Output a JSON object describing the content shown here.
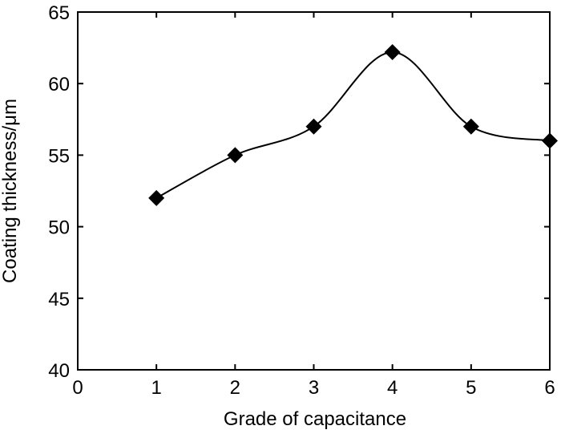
{
  "chart_data": {
    "type": "line",
    "title": "",
    "xlabel": "Grade of capacitance",
    "ylabel": "Coating thickness/μm",
    "x": [
      1,
      2,
      3,
      4,
      5,
      6
    ],
    "series": [
      {
        "values": [
          52,
          55,
          57,
          62.2,
          57,
          56
        ],
        "marker": "diamond",
        "color": "#000000",
        "smooth": true
      }
    ],
    "xlim": [
      0,
      6
    ],
    "ylim": [
      40,
      65
    ],
    "xticks": [
      "0",
      "1",
      "2",
      "3",
      "4",
      "5",
      "6"
    ],
    "yticks": [
      "40",
      "45",
      "50",
      "55",
      "60",
      "65"
    ],
    "grid": false,
    "legend": "none"
  }
}
